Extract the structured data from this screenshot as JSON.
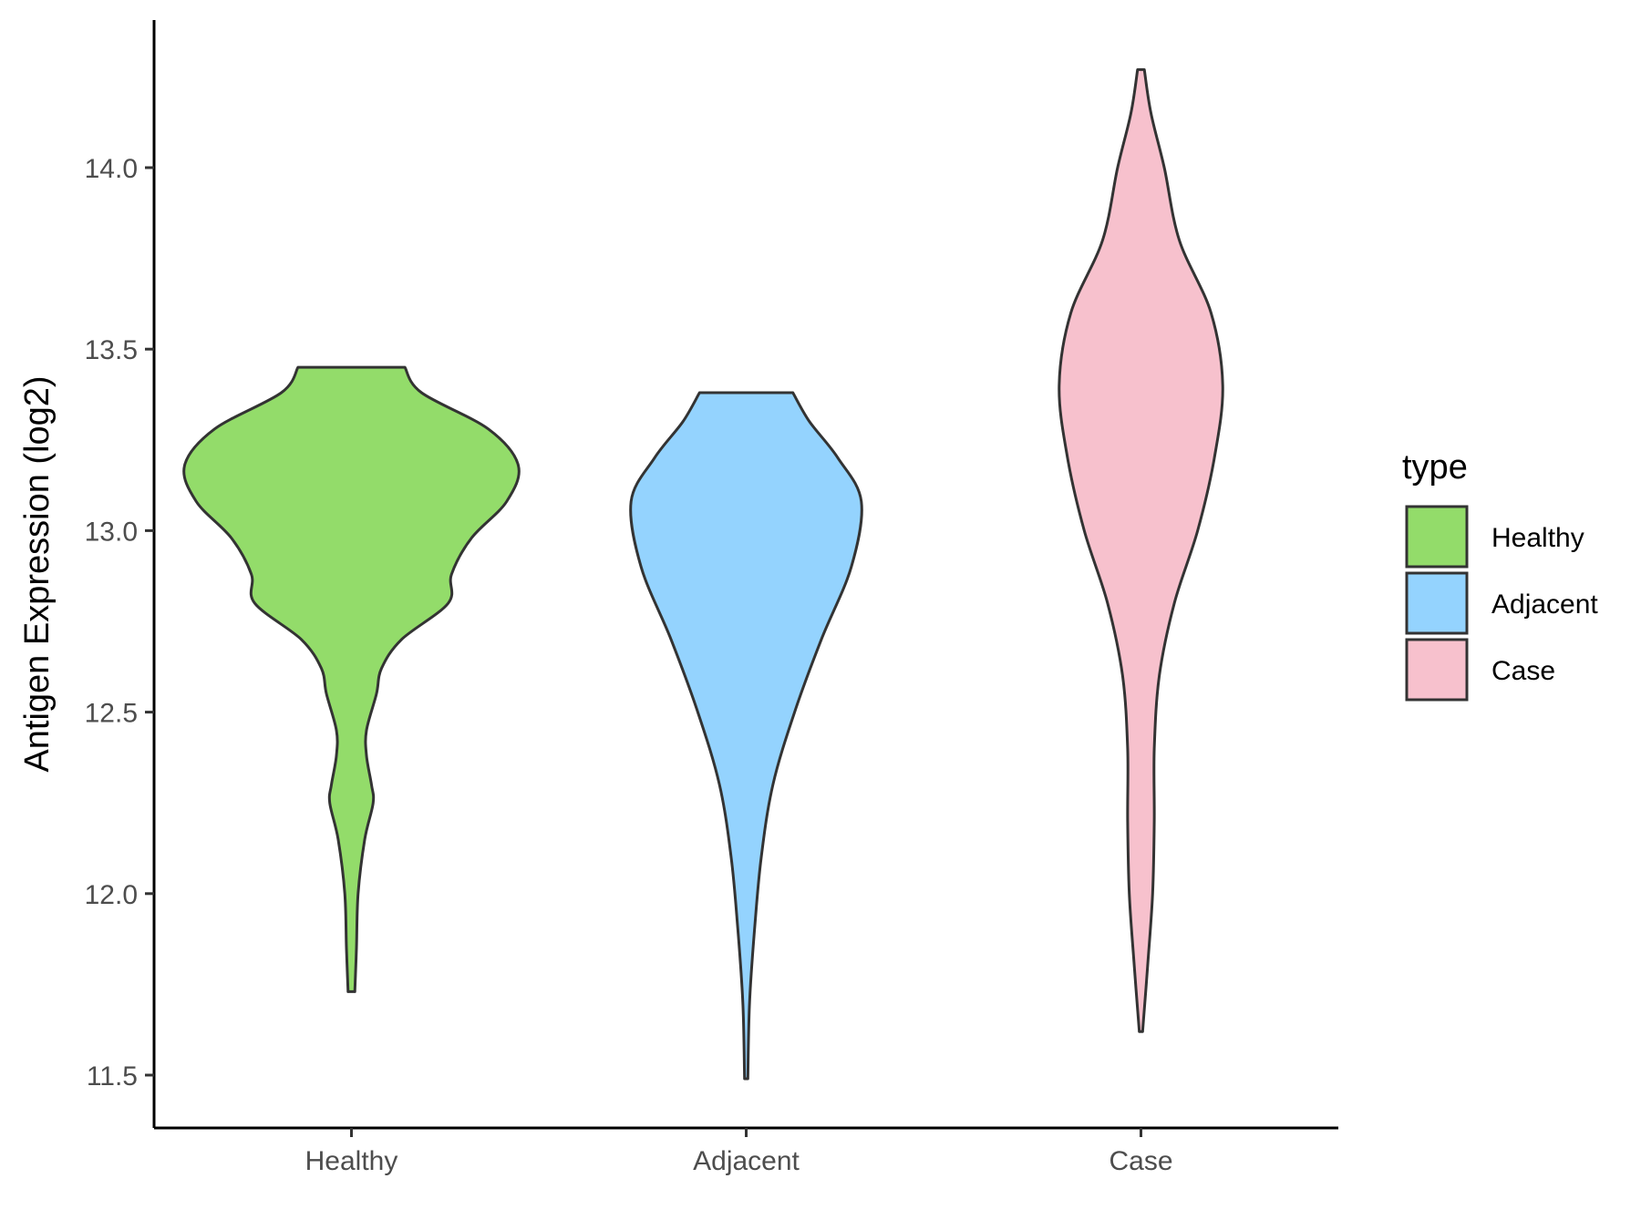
{
  "chart_data": {
    "type": "violin",
    "title": "",
    "xlabel": "",
    "ylabel": "Antigen Expression (log2)",
    "ylim": [
      11.35,
      14.4
    ],
    "yticks": [
      11.5,
      12.0,
      12.5,
      13.0,
      13.5,
      14.0
    ],
    "ytick_labels": [
      "11.5",
      "12.0",
      "12.5",
      "13.0",
      "13.5",
      "14.0"
    ],
    "categories": [
      "Healthy",
      "Adjacent",
      "Case"
    ],
    "grid": false,
    "legend": {
      "title": "type",
      "position": "right",
      "entries": [
        "Healthy",
        "Adjacent",
        "Case"
      ]
    },
    "colors": {
      "Healthy": "#93dc6a",
      "Adjacent": "#94d3fe",
      "Case": "#f7c1cd",
      "outline": "#333333"
    },
    "series": [
      {
        "category": "Healthy",
        "min": 11.73,
        "max": 13.45,
        "density": [
          [
            11.73,
            0.02
          ],
          [
            11.85,
            0.03
          ],
          [
            12.0,
            0.04
          ],
          [
            12.15,
            0.08
          ],
          [
            12.25,
            0.13
          ],
          [
            12.3,
            0.12
          ],
          [
            12.38,
            0.09
          ],
          [
            12.45,
            0.09
          ],
          [
            12.55,
            0.15
          ],
          [
            12.62,
            0.18
          ],
          [
            12.7,
            0.3
          ],
          [
            12.8,
            0.58
          ],
          [
            12.88,
            0.6
          ],
          [
            12.98,
            0.72
          ],
          [
            13.08,
            0.93
          ],
          [
            13.18,
            1.0
          ],
          [
            13.28,
            0.82
          ],
          [
            13.38,
            0.42
          ],
          [
            13.45,
            0.32
          ]
        ]
      },
      {
        "category": "Adjacent",
        "min": 11.49,
        "max": 13.38,
        "density": [
          [
            11.49,
            0.01
          ],
          [
            11.7,
            0.02
          ],
          [
            11.9,
            0.05
          ],
          [
            12.1,
            0.09
          ],
          [
            12.3,
            0.16
          ],
          [
            12.5,
            0.29
          ],
          [
            12.7,
            0.45
          ],
          [
            12.9,
            0.63
          ],
          [
            13.08,
            0.69
          ],
          [
            13.2,
            0.55
          ],
          [
            13.3,
            0.38
          ],
          [
            13.38,
            0.28
          ]
        ]
      },
      {
        "category": "Case",
        "min": 11.62,
        "max": 14.27,
        "density": [
          [
            11.62,
            0.01
          ],
          [
            11.8,
            0.04
          ],
          [
            12.0,
            0.07
          ],
          [
            12.2,
            0.08
          ],
          [
            12.4,
            0.08
          ],
          [
            12.6,
            0.11
          ],
          [
            12.8,
            0.2
          ],
          [
            13.0,
            0.34
          ],
          [
            13.2,
            0.44
          ],
          [
            13.4,
            0.49
          ],
          [
            13.6,
            0.42
          ],
          [
            13.8,
            0.23
          ],
          [
            14.0,
            0.14
          ],
          [
            14.15,
            0.06
          ],
          [
            14.27,
            0.02
          ]
        ]
      }
    ]
  }
}
